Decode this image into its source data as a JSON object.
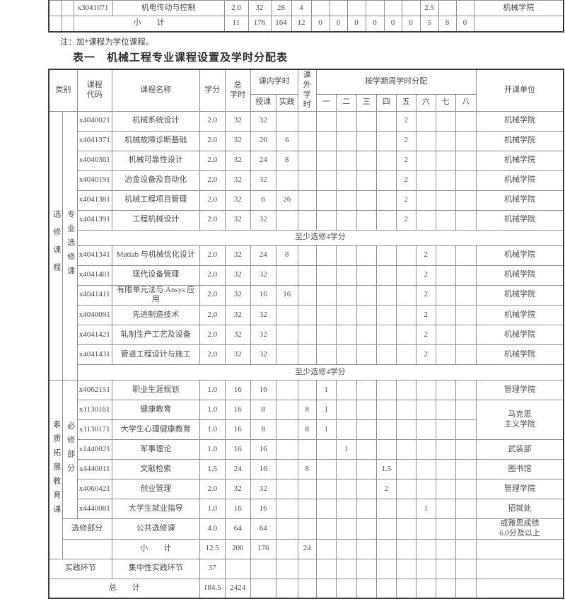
{
  "note": "注：加*课程为学位课程。",
  "title": "表一　机械工程专业课程设置及学时分配表",
  "top_table": {
    "rows": [
      {
        "cells": [
          "",
          "",
          {
            "t": "x3041071",
            "n": "course-code"
          },
          {
            "t": "机电传动与控制",
            "cls": "lft",
            "n": "course-name"
          },
          "2.0",
          "32",
          "28",
          "4",
          "",
          "",
          "",
          "",
          "",
          "",
          "2.5",
          "",
          "",
          {
            "t": "机械学院",
            "n": "unit"
          }
        ]
      },
      {
        "cells": [
          "",
          "",
          {
            "t": "小　　计",
            "cs": 2,
            "n": "subtotal-label"
          },
          "11",
          "176",
          "164",
          "12",
          "0",
          "0",
          "0",
          "0",
          "0",
          "0",
          "5",
          "8",
          "0",
          ""
        ]
      }
    ]
  },
  "main_table": {
    "header_rows": [
      {
        "cls": "h1",
        "cells": [
          {
            "t": "类别",
            "cs": 2,
            "rs": 2,
            "n": "col-category"
          },
          {
            "t": "课程\n代码",
            "rs": 2,
            "cls": "pre",
            "n": "col-code"
          },
          {
            "t": "课程名称",
            "rs": 2,
            "n": "col-name"
          },
          {
            "t": "学分",
            "rs": 2,
            "n": "col-credit"
          },
          {
            "t": "总\n学时",
            "rs": 2,
            "cls": "pre",
            "n": "col-total-hours"
          },
          {
            "t": "课内学时",
            "cs": 2,
            "n": "col-inclass-hours"
          },
          {
            "t": "课外\n学时",
            "rs": 2,
            "cls": "pre",
            "n": "col-extra-hours"
          },
          {
            "t": "按学期周学时分配",
            "cs": 8,
            "n": "col-weekly-hours"
          },
          {
            "t": "开课单位",
            "rs": 2,
            "n": "col-unit"
          }
        ]
      },
      {
        "cls": "h2",
        "cells": [
          {
            "t": "授课",
            "n": "col-lecture"
          },
          {
            "t": "实践",
            "n": "col-practice"
          },
          "一",
          "二",
          "三",
          "四",
          "五",
          "六",
          "七",
          "八"
        ]
      }
    ],
    "rows": [
      {
        "cells": [
          {
            "t": "选修课程",
            "rs": 14,
            "cls": "v",
            "n": "category-label"
          },
          {
            "t": "专业选修课",
            "rs": 14,
            "cls": "v2",
            "n": "subcategory-label"
          },
          {
            "t": "x4040021",
            "n": "course-code"
          },
          {
            "t": "机械系统设计",
            "cls": "lft",
            "n": "course-name"
          },
          "2.0",
          "32",
          "32",
          "",
          "",
          "",
          "",
          "",
          "",
          "2",
          "",
          "",
          "",
          {
            "t": "机械学院",
            "n": "unit"
          }
        ]
      },
      {
        "cells": [
          {
            "t": "x4041371",
            "n": "course-code"
          },
          {
            "t": "机械故障诊断基础",
            "cls": "lft",
            "n": "course-name"
          },
          "2.0",
          "32",
          "26",
          "6",
          "",
          "",
          "",
          "",
          "",
          "2",
          "",
          "",
          "",
          {
            "t": "机械学院",
            "n": "unit"
          }
        ]
      },
      {
        "cells": [
          {
            "t": "x4040361",
            "n": "course-code"
          },
          {
            "t": "机械可靠性设计",
            "cls": "lft",
            "n": "course-name"
          },
          "2.0",
          "32",
          "24",
          "8",
          "",
          "",
          "",
          "",
          "",
          "2",
          "",
          "",
          "",
          {
            "t": "机械学院",
            "n": "unit"
          }
        ]
      },
      {
        "cells": [
          {
            "t": "x4040191",
            "n": "course-code"
          },
          {
            "t": "冶金设备及自动化",
            "cls": "lft",
            "n": "course-name"
          },
          "2.0",
          "32",
          "32",
          "",
          "",
          "",
          "",
          "",
          "",
          "2",
          "",
          "",
          "",
          {
            "t": "机械学院",
            "n": "unit"
          }
        ]
      },
      {
        "cells": [
          {
            "t": "x4041381",
            "n": "course-code"
          },
          {
            "t": "机械工程项目管理",
            "cls": "lft",
            "n": "course-name"
          },
          "2.0",
          "32",
          "6",
          "26",
          "",
          "",
          "",
          "",
          "",
          "2",
          "",
          "",
          "",
          {
            "t": "机械学院",
            "n": "unit"
          }
        ]
      },
      {
        "cells": [
          {
            "t": "x4041391",
            "n": "course-code"
          },
          {
            "t": "工程机械设计",
            "cls": "lft",
            "n": "course-name"
          },
          "2.0",
          "32",
          "32",
          "",
          "",
          "",
          "",
          "",
          "",
          "2",
          "",
          "",
          "",
          {
            "t": "机械学院",
            "n": "unit"
          }
        ]
      },
      {
        "cls": "short thick",
        "cells": [
          {
            "t": "至少选修4学分",
            "cs": 16,
            "n": "elective-requirement-note"
          }
        ]
      },
      {
        "cls": "thick",
        "cells": [
          {
            "t": "x4041341",
            "n": "course-code"
          },
          {
            "t": "Matlab 与机械优化设计",
            "cls": "lft",
            "n": "course-name"
          },
          "2.0",
          "32",
          "24",
          "8",
          "",
          "",
          "",
          "",
          "",
          "",
          "2",
          "",
          "",
          {
            "t": "机械学院",
            "n": "unit"
          }
        ]
      },
      {
        "cells": [
          {
            "t": "x4041401",
            "n": "course-code"
          },
          {
            "t": "现代设备管理",
            "cls": "lft",
            "n": "course-name"
          },
          "2.0",
          "32",
          "32",
          "",
          "",
          "",
          "",
          "",
          "",
          "",
          "2",
          "",
          "",
          {
            "t": "机械学院",
            "n": "unit"
          }
        ]
      },
      {
        "cells": [
          {
            "t": "x4041411",
            "n": "course-code"
          },
          {
            "t": "有限单元法与 Ansys 应用",
            "cls": "lft",
            "n": "course-name"
          },
          "2.0",
          "32",
          "16",
          "16",
          "",
          "",
          "",
          "",
          "",
          "",
          "2",
          "",
          "",
          {
            "t": "机械学院",
            "n": "unit"
          }
        ]
      },
      {
        "cells": [
          {
            "t": "x4040091",
            "n": "course-code"
          },
          {
            "t": "先进制造技术",
            "cls": "lft",
            "n": "course-name"
          },
          "2.0",
          "32",
          "32",
          "",
          "",
          "",
          "",
          "",
          "",
          "",
          "2",
          "",
          "",
          {
            "t": "机械学院",
            "n": "unit"
          }
        ]
      },
      {
        "cells": [
          {
            "t": "x4041421",
            "n": "course-code"
          },
          {
            "t": "轧制生产工艺及设备",
            "cls": "lft",
            "n": "course-name"
          },
          "2.0",
          "32",
          "32",
          "",
          "",
          "",
          "",
          "",
          "",
          "",
          "2",
          "",
          "",
          {
            "t": "机械学院",
            "n": "unit"
          }
        ]
      },
      {
        "cells": [
          {
            "t": "x4041431",
            "n": "course-code"
          },
          {
            "t": "管道工程设计与施工",
            "cls": "lft",
            "n": "course-name"
          },
          "2.0",
          "32",
          "32",
          "",
          "",
          "",
          "",
          "",
          "",
          "",
          "2",
          "",
          "",
          {
            "t": "机械学院",
            "n": "unit"
          }
        ]
      },
      {
        "cls": "short thick",
        "cells": [
          {
            "t": "至少选修4学分",
            "cs": 16,
            "n": "elective-requirement-note"
          }
        ]
      },
      {
        "cls": "thick",
        "cells": [
          {
            "t": "素质拓展教育课",
            "rs": 9,
            "cls": "v2",
            "n": "category-label"
          },
          {
            "t": "必修部分",
            "rs": 7,
            "cls": "v2",
            "n": "subcategory-label"
          },
          {
            "t": "x4062151",
            "n": "course-code"
          },
          {
            "t": "职业生涯规划",
            "cls": "lft",
            "n": "course-name"
          },
          "1.0",
          "16",
          "16",
          "",
          "",
          "1",
          "",
          "",
          "",
          "",
          "",
          "",
          "",
          {
            "t": "管理学院",
            "n": "unit"
          }
        ]
      },
      {
        "cells": [
          {
            "t": "x1130161",
            "n": "course-code"
          },
          {
            "t": "健康教育",
            "cls": "lft",
            "n": "course-name"
          },
          "1.0",
          "16",
          "8",
          "",
          "8",
          "1",
          "",
          "",
          "",
          "",
          "",
          "",
          "",
          {
            "t": "马克思\n主义学院",
            "rs": 2,
            "cls": "pre",
            "n": "unit"
          }
        ]
      },
      {
        "cells": [
          {
            "t": "x1130171",
            "n": "course-code"
          },
          {
            "t": "大学生心理健康教育",
            "cls": "lft",
            "n": "course-name"
          },
          "1.0",
          "16",
          "8",
          "",
          "8",
          "1",
          "",
          "",
          "",
          "",
          "",
          "",
          ""
        ]
      },
      {
        "cells": [
          {
            "t": "x1440021",
            "n": "course-code"
          },
          {
            "t": "军事理论",
            "cls": "lft",
            "n": "course-name"
          },
          "1.0",
          "16",
          "16",
          "",
          "",
          "",
          "1",
          "",
          "",
          "",
          "",
          "",
          "",
          {
            "t": "武装部",
            "n": "unit"
          }
        ]
      },
      {
        "cells": [
          {
            "t": "x4440011",
            "n": "course-code"
          },
          {
            "t": "文献检索",
            "cls": "lft",
            "n": "course-name"
          },
          "1.5",
          "24",
          "16",
          "",
          "8",
          "",
          "",
          "",
          "1.5",
          "",
          "",
          "",
          "",
          {
            "t": "图书馆",
            "n": "unit"
          }
        ]
      },
      {
        "cells": [
          {
            "t": "x4060421",
            "n": "course-code"
          },
          {
            "t": "创业管理",
            "cls": "lft",
            "n": "course-name"
          },
          "2.0",
          "32",
          "32",
          "",
          "",
          "",
          "",
          "",
          "2",
          "",
          "",
          "",
          "",
          {
            "t": "管理学院",
            "n": "unit"
          }
        ]
      },
      {
        "cells": [
          {
            "t": "x4440081",
            "n": "course-code"
          },
          {
            "t": "大学生就业指导",
            "cls": "lft",
            "n": "course-name"
          },
          "1.0",
          "16",
          "16",
          "",
          "",
          "",
          "",
          "",
          "",
          "",
          "1",
          "",
          "",
          {
            "t": "招就处",
            "n": "unit"
          }
        ]
      },
      {
        "cells": [
          {
            "t": "选修部分",
            "cs": 2,
            "n": "subcategory-label"
          },
          {
            "t": "公共选修课",
            "cls": "lft",
            "n": "course-name"
          },
          "4.0",
          "64",
          "64",
          "",
          "",
          "",
          "",
          "",
          "",
          "",
          "",
          "",
          "",
          {
            "t": "或雅思成绩\n6.0分及以上",
            "cls": "pre sm",
            "n": "unit"
          }
        ]
      },
      {
        "cells": [
          {
            "t": "",
            "cs": 2
          },
          {
            "t": "小　　计",
            "n": "subtotal-label"
          },
          "12.5",
          "200",
          "176",
          "",
          "24",
          "",
          "",
          "",
          "",
          "",
          "",
          "",
          "",
          ""
        ]
      },
      {
        "cls": "thick",
        "cells": [
          {
            "t": "实践环节",
            "cs": 3,
            "n": "category-label"
          },
          {
            "t": "集中性实践环节",
            "cls": "lft",
            "n": "course-name"
          },
          "37",
          "",
          "",
          "",
          "",
          "",
          "",
          "",
          "",
          "",
          "",
          "",
          "",
          ""
        ]
      },
      {
        "cls": "thick",
        "cells": [
          {
            "t": "总　　计",
            "cs": 4,
            "n": "grand-total-label"
          },
          "184.5",
          "2424",
          "",
          "",
          "",
          "",
          "",
          "",
          "",
          "",
          "",
          "",
          "",
          ""
        ]
      }
    ]
  }
}
